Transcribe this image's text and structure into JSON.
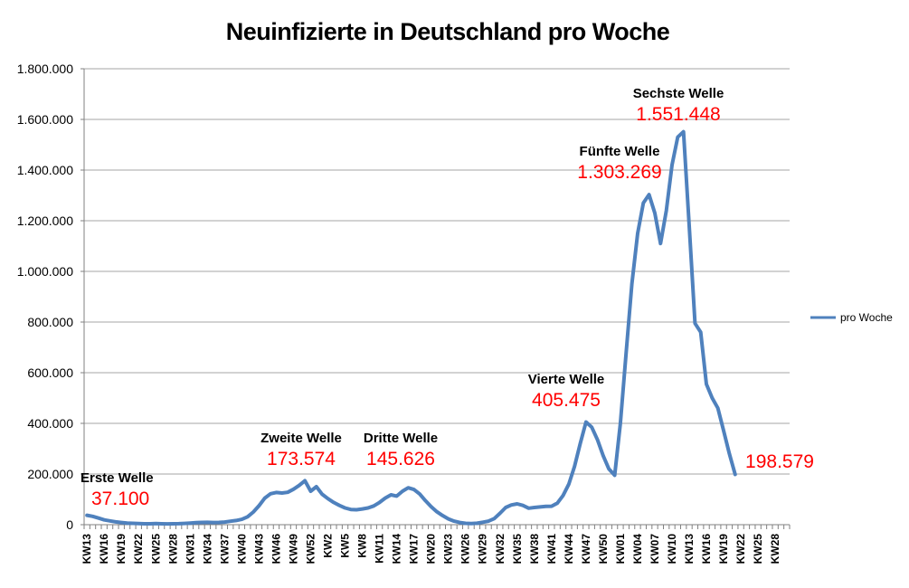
{
  "chart_data": {
    "type": "line",
    "title": "Neuinfizierte in Deutschland pro Woche",
    "legend_label": "pro Woche",
    "x_total_categories": 123,
    "x_label_every_n_categories": 3,
    "x_tick_labels": [
      "KW13",
      "KW16",
      "KW19",
      "KW22",
      "KW25",
      "KW28",
      "KW31",
      "KW34",
      "KW37",
      "KW40",
      "KW43",
      "KW46",
      "KW49",
      "KW52",
      "KW2",
      "KW5",
      "KW8",
      "KW11",
      "KW14",
      "KW17",
      "KW20",
      "KW23",
      "KW26",
      "KW29",
      "KW32",
      "KW35",
      "KW38",
      "KW41",
      "KW44",
      "KW47",
      "KW50",
      "KW01",
      "KW04",
      "KW07",
      "KW10",
      "KW13",
      "KW16",
      "KW19",
      "KW22",
      "KW25",
      "KW28"
    ],
    "y_min": 0,
    "y_max": 1800000,
    "y_step": 200000,
    "y_tick_labels": [
      "1.800.000",
      "1.600.000",
      "1.400.000",
      "1.200.000",
      "1.000.000",
      "800.000",
      "600.000",
      "400.000",
      "200.000",
      "0"
    ],
    "series": [
      {
        "name": "pro Woche",
        "values": [
          37100,
          33000,
          26000,
          19000,
          15000,
          11000,
          8500,
          6500,
          5200,
          4300,
          3600,
          3700,
          4400,
          3700,
          3300,
          3400,
          3900,
          4900,
          6400,
          7900,
          9000,
          9200,
          8700,
          9000,
          10500,
          13500,
          16500,
          21000,
          31000,
          50000,
          75000,
          105000,
          122000,
          127000,
          125000,
          128000,
          140000,
          155000,
          173574,
          132000,
          150000,
          120000,
          103000,
          88000,
          76000,
          66000,
          60000,
          59000,
          62000,
          66000,
          74000,
          88000,
          105000,
          118000,
          113000,
          132000,
          145626,
          139000,
          121000,
          95000,
          71000,
          51000,
          36000,
          23000,
          14000,
          8500,
          5500,
          4800,
          5800,
          9500,
          14000,
          24000,
          45000,
          68000,
          78000,
          82000,
          76000,
          65000,
          68000,
          70000,
          72000,
          73000,
          85000,
          115000,
          160000,
          230000,
          320000,
          405475,
          385000,
          335000,
          272000,
          220000,
          195000,
          400000,
          680000,
          950000,
          1150000,
          1270000,
          1303269,
          1230000,
          1110000,
          1240000,
          1420000,
          1530000,
          1551448,
          1180000,
          795000,
          760000,
          555000,
          500000,
          460000,
          370000,
          280000,
          198579
        ]
      }
    ],
    "annotations": [
      {
        "id": "erste",
        "label": "Erste Welle",
        "value": "37.100"
      },
      {
        "id": "zweite",
        "label": "Zweite Welle",
        "value": "173.574"
      },
      {
        "id": "dritte",
        "label": "Dritte Welle",
        "value": "145.626"
      },
      {
        "id": "vierte",
        "label": "Vierte Welle",
        "value": "405.475"
      },
      {
        "id": "fuenfte",
        "label": "Fünfte Welle",
        "value": "1.303.269"
      },
      {
        "id": "sechste",
        "label": "Sechste Welle",
        "value": "1.551.448"
      },
      {
        "id": "endwert",
        "label": "",
        "value": "198.579"
      }
    ]
  },
  "colors": {
    "line": "#4F81BD",
    "gridline": "#A6A6A6",
    "axis": "#808080",
    "annotation_value": "#FF0000",
    "annotation_label": "#000000",
    "text": "#000000"
  }
}
